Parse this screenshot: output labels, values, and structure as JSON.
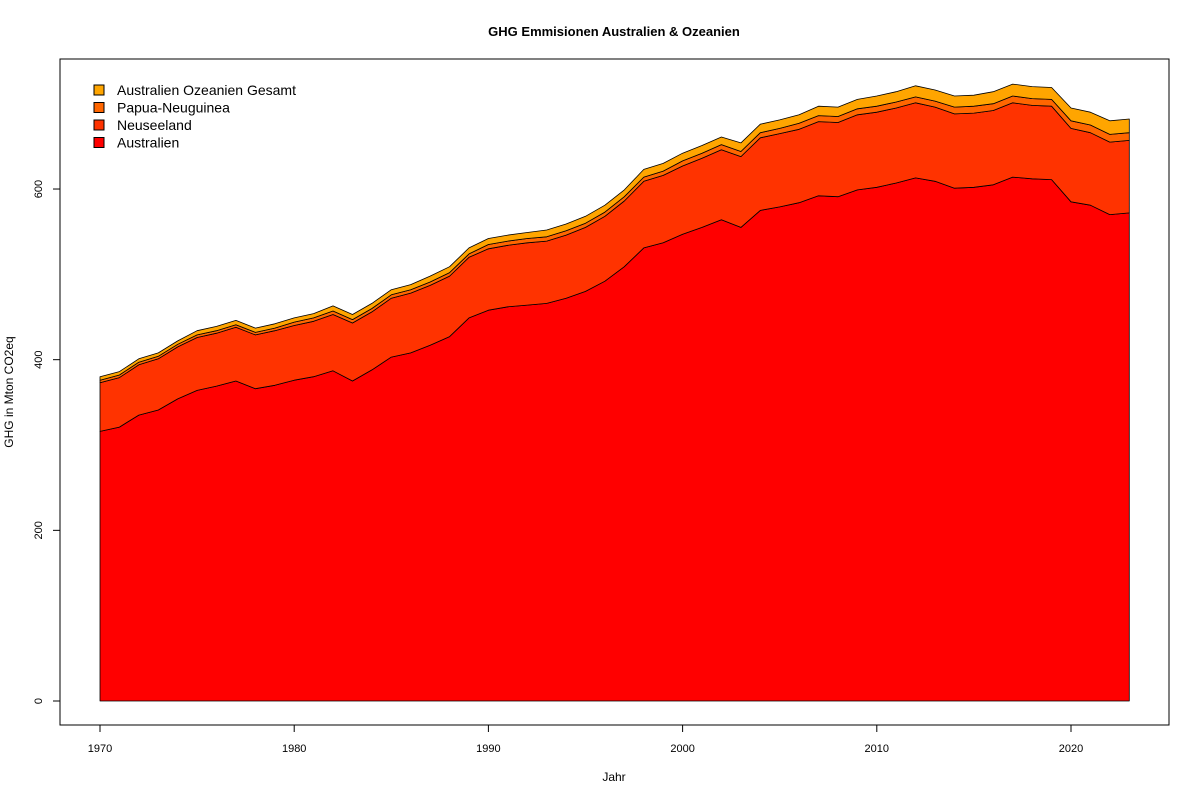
{
  "chart_data": {
    "type": "area",
    "stacked": true,
    "title": "GHG Emmisionen Australien & Ozeanien",
    "xlabel": "Jahr",
    "ylabel": "GHG in Mton CO2eq",
    "xlim": [
      1968,
      2025
    ],
    "ylim": [
      -30,
      750
    ],
    "xticks": [
      1970,
      1980,
      1990,
      2000,
      2010,
      2020
    ],
    "yticks": [
      0,
      200,
      400,
      600
    ],
    "grid": false,
    "legend_position": "top-left",
    "x": [
      1970,
      1971,
      1972,
      1973,
      1974,
      1975,
      1976,
      1977,
      1978,
      1979,
      1980,
      1981,
      1982,
      1983,
      1984,
      1985,
      1986,
      1987,
      1988,
      1989,
      1990,
      1991,
      1992,
      1993,
      1994,
      1995,
      1996,
      1997,
      1998,
      1999,
      2000,
      2001,
      2002,
      2003,
      2004,
      2005,
      2006,
      2007,
      2008,
      2009,
      2010,
      2011,
      2012,
      2013,
      2014,
      2015,
      2016,
      2017,
      2018,
      2019,
      2020,
      2021,
      2022,
      2023
    ],
    "series": [
      {
        "name": "Australien",
        "color": "#FF0000",
        "values": [
          316,
          321,
          335,
          341,
          354,
          364,
          369,
          375,
          366,
          370,
          376,
          380,
          387,
          375,
          388,
          403,
          408,
          417,
          427,
          449,
          458,
          462,
          464,
          466,
          472,
          480,
          492,
          509,
          531,
          537,
          547,
          555,
          564,
          555,
          575,
          579,
          584,
          592,
          591,
          599,
          602,
          607,
          613,
          609,
          601,
          602,
          605,
          614,
          612,
          611,
          585,
          581,
          570,
          572
        ]
      },
      {
        "name": "Neuseeland",
        "color": "#FF3300",
        "values": [
          57,
          58,
          59,
          60,
          61,
          62,
          62,
          63,
          63,
          64,
          64,
          65,
          66,
          68,
          68,
          69,
          70,
          70,
          71,
          71,
          72,
          72,
          73,
          73,
          74,
          75,
          76,
          77,
          78,
          79,
          80,
          81,
          82,
          83,
          85,
          86,
          86,
          87,
          87,
          88,
          88,
          88,
          88,
          87,
          87,
          87,
          87,
          87,
          86,
          86,
          86,
          85,
          85,
          85
        ]
      },
      {
        "name": "Papua-Neuguinea",
        "color": "#FF6600",
        "values": [
          3,
          3,
          3,
          3,
          3,
          3,
          3,
          3,
          3,
          3,
          4,
          4,
          4,
          4,
          4,
          4,
          4,
          4,
          4,
          4,
          5,
          5,
          5,
          5,
          5,
          5,
          5,
          5,
          5,
          5,
          6,
          6,
          6,
          6,
          6,
          6,
          7,
          7,
          7,
          7,
          7,
          7,
          7,
          7,
          8,
          8,
          8,
          8,
          8,
          8,
          9,
          9,
          9,
          9
        ]
      },
      {
        "name": "Australien Ozeanien Gesamt",
        "color": "#FFA500",
        "values": [
          4,
          4,
          4,
          4,
          4,
          5,
          5,
          5,
          5,
          5,
          5,
          5,
          6,
          6,
          6,
          6,
          6,
          7,
          7,
          7,
          7,
          7,
          7,
          8,
          8,
          8,
          8,
          8,
          9,
          9,
          9,
          9,
          9,
          10,
          10,
          10,
          10,
          11,
          11,
          11,
          12,
          12,
          13,
          13,
          13,
          13,
          14,
          14,
          14,
          14,
          15,
          15,
          16,
          16
        ]
      }
    ],
    "legend_order": [
      "Australien Ozeanien Gesamt",
      "Papua-Neuguinea",
      "Neuseeland",
      "Australien"
    ]
  }
}
